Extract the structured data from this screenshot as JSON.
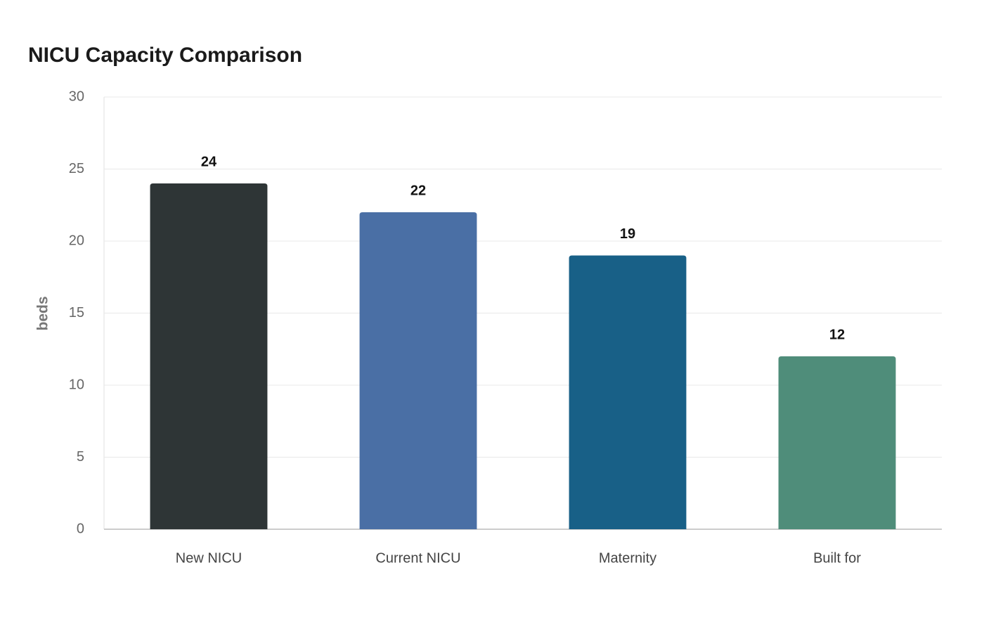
{
  "chart_data": {
    "type": "bar",
    "title": "NICU Capacity Comparison",
    "y_label": "beds",
    "categories": [
      "New NICU",
      "Current NICU",
      "Maternity",
      "Built for"
    ],
    "values": [
      24,
      22,
      19,
      12
    ],
    "colors": [
      "#2e3536",
      "#4a6fa5",
      "#186087",
      "#4f8d7a"
    ],
    "ylim": [
      0,
      30
    ],
    "yticks": [
      0,
      5,
      10,
      15,
      20,
      25,
      30
    ],
    "grid": true
  }
}
